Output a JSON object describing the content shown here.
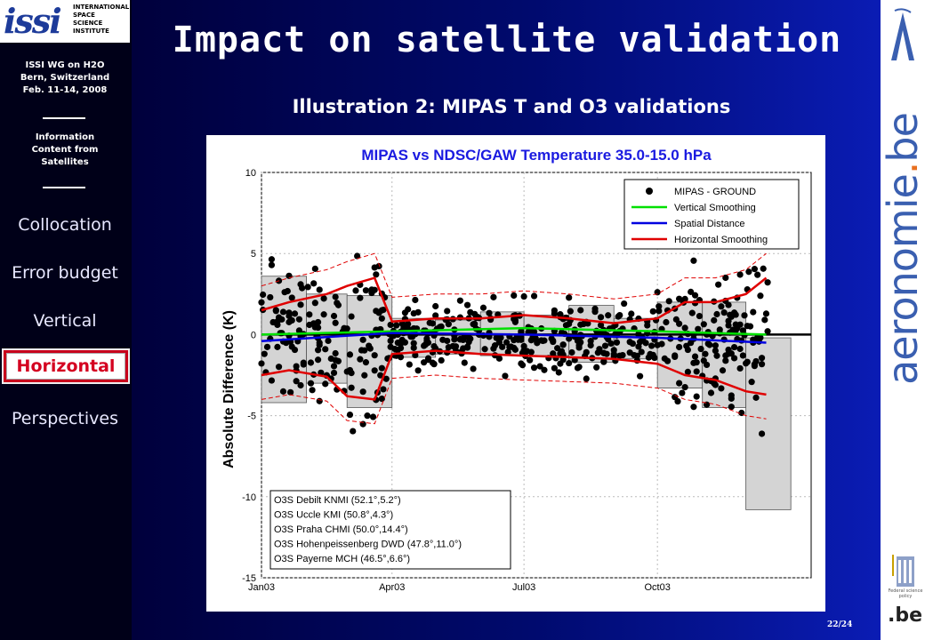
{
  "sidebar": {
    "logo_text": [
      "INTERNATIONAL",
      "SPACE",
      "SCIENCE",
      "INSTITUTE"
    ],
    "meeting": [
      "ISSI WG on H2O",
      "Bern, Switzerland",
      "Feb. 11-14, 2008"
    ],
    "section": [
      "Information",
      "Content from",
      "Satellites"
    ],
    "nav": [
      "Collocation",
      "Error budget",
      "Vertical",
      "Horizontal",
      "Perspectives"
    ],
    "active": "Horizontal"
  },
  "title": "Impact on satellite validation",
  "subtitle": "Illustration 2: MIPAS T and O3 validations",
  "page": "22/24",
  "right_logo": {
    "pre": "aeronomie",
    "dot": ".",
    "post": "be",
    "footer": ".be",
    "belspo": "Federal science policy"
  },
  "chart_data": {
    "type": "scatter",
    "title": "MIPAS vs NDSC/GAW Temperature 35.0-15.0 hPa",
    "ylabel": "Absolute Difference (K)",
    "xlabel": "",
    "ylim": [
      -15,
      10
    ],
    "yticks": [
      "10",
      "5",
      "0",
      "-5",
      "-10",
      "-15"
    ],
    "xlim": [
      "2003-01-01",
      "2004-01-15"
    ],
    "xticks": [
      "Jan03",
      "Apr03",
      "Jul03",
      "Oct03"
    ],
    "grid": true,
    "legend": {
      "placement": "top-right",
      "entries": [
        {
          "label": "MIPAS - GROUND",
          "color": "#000000",
          "style": "dot"
        },
        {
          "label": "Vertical Smoothing",
          "color": "#00e000",
          "style": "line"
        },
        {
          "label": "Spatial Distance",
          "color": "#0000e0",
          "style": "line"
        },
        {
          "label": "Horizontal Smoothing",
          "color": "#e00000",
          "style": "line"
        }
      ]
    },
    "stations_box": {
      "placement": "bottom-left",
      "entries": [
        "O3S Debilt KNMI (52.1°,5.2°)",
        "O3S Uccle KMI (50.8°,4.3°)",
        "O3S Praha CHMI (50.0°,14.4°)",
        "O3S Hohenpeissenberg DWD (47.8°,11.0°)",
        "O3S Payerne MCH (46.5°,6.6°)"
      ]
    },
    "monthly_boxes": [
      {
        "month": "2003-01",
        "low": -4.2,
        "high": 3.6
      },
      {
        "month": "2003-02",
        "low": -3.0,
        "high": 2.5
      },
      {
        "month": "2003-03",
        "low": -4.5,
        "high": 2.4
      },
      {
        "month": "2003-04",
        "low": -1.4,
        "high": 1.0
      },
      {
        "month": "2003-05",
        "low": -1.2,
        "high": 0.9
      },
      {
        "month": "2003-06",
        "low": -1.3,
        "high": 1.4
      },
      {
        "month": "2003-07",
        "low": -1.3,
        "high": 1.2
      },
      {
        "month": "2003-08",
        "low": -1.7,
        "high": 1.8
      },
      {
        "month": "2003-09",
        "low": -1.5,
        "high": 1.0
      },
      {
        "month": "2003-10",
        "low": -3.3,
        "high": 2.0
      },
      {
        "month": "2003-11",
        "low": -4.5,
        "high": 2.0
      },
      {
        "month": "2003-12",
        "low": -10.8,
        "high": -0.2
      }
    ],
    "series": [
      {
        "name": "Horizontal Smoothing",
        "color": "#e00000",
        "x": [
          "2003-01-01",
          "2003-01-20",
          "2003-02-15",
          "2003-03-01",
          "2003-03-20",
          "2003-04-01",
          "2003-05-01",
          "2003-06-01",
          "2003-07-01",
          "2003-08-01",
          "2003-09-01",
          "2003-10-01",
          "2003-10-20",
          "2003-11-10",
          "2003-12-01",
          "2003-12-15"
        ],
        "upper": [
          1.5,
          2.0,
          2.5,
          3.0,
          3.5,
          0.8,
          1.0,
          1.0,
          1.2,
          1.0,
          0.7,
          1.0,
          2.0,
          2.0,
          2.5,
          3.5
        ],
        "lower": [
          -2.5,
          -2.2,
          -2.6,
          -3.8,
          -4.0,
          -1.2,
          -1.0,
          -1.2,
          -1.3,
          -1.4,
          -1.5,
          -1.8,
          -2.5,
          -2.8,
          -3.5,
          -3.7
        ]
      },
      {
        "name": "Vertical Smoothing",
        "color": "#00e000",
        "x": [
          "2003-01-01",
          "2003-04-01",
          "2003-07-01",
          "2003-10-01",
          "2003-12-15"
        ],
        "values": [
          0.0,
          0.2,
          0.4,
          0.2,
          0.0
        ]
      },
      {
        "name": "Spatial Distance",
        "color": "#0000e0",
        "x": [
          "2003-01-01",
          "2003-04-01",
          "2003-07-01",
          "2003-10-01",
          "2003-12-15"
        ],
        "values": [
          -0.4,
          0.1,
          0.0,
          -0.2,
          -0.5
        ]
      }
    ]
  }
}
